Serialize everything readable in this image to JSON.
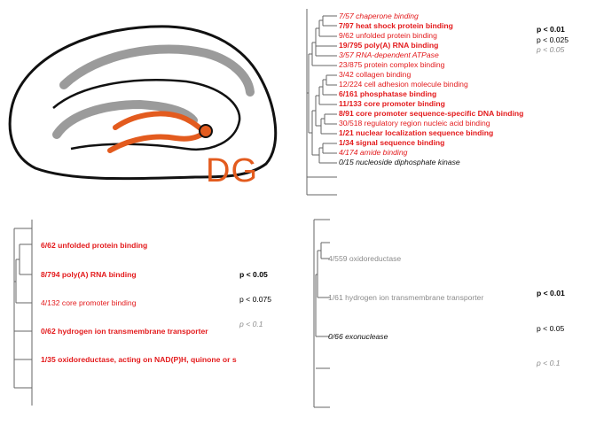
{
  "colors": {
    "red": "#e31a1c",
    "black": "#111111",
    "gray": "#8c8c8c",
    "orange": "#e35b1e"
  },
  "brain_label": "DG",
  "panel_tr": {
    "terms": [
      {
        "text": "7/57 chaperone binding",
        "style": "redi"
      },
      {
        "text": "7/97 heat shock protein binding",
        "style": "redb"
      },
      {
        "text": "9/62 unfolded protein binding",
        "style": "red"
      },
      {
        "text": "19/795 poly(A) RNA binding",
        "style": "redb"
      },
      {
        "text": "3/57 RNA-dependent ATPase",
        "style": "redi"
      },
      {
        "text": "23/875 protein complex binding",
        "style": "red"
      },
      {
        "text": "3/42 collagen binding",
        "style": "red"
      },
      {
        "text": "12/224 cell adhesion molecule binding",
        "style": "red"
      },
      {
        "text": "6/161 phosphatase binding",
        "style": "redb"
      },
      {
        "text": "11/133 core promoter binding",
        "style": "redb"
      },
      {
        "text": "8/91 core promoter sequence-specific DNA binding",
        "style": "redb"
      },
      {
        "text": "30/518 regulatory region nucleic acid binding",
        "style": "red"
      },
      {
        "text": "1/21 nuclear localization sequence binding",
        "style": "redb"
      },
      {
        "text": "1/34 signal sequence binding",
        "style": "redb"
      },
      {
        "text": "4/174 amide binding",
        "style": "redi"
      },
      {
        "text": "0/15 nucleoside diphosphate kinase",
        "style": "blki"
      }
    ],
    "legend": [
      "p < 0.01",
      "p < 0.025",
      "p < 0.05"
    ]
  },
  "panel_bl": {
    "terms": [
      {
        "text": "6/62 unfolded protein binding",
        "style": "redb"
      },
      {
        "text": "8/794 poly(A) RNA binding",
        "style": "redb"
      },
      {
        "text": "4/132 core promoter binding",
        "style": "red"
      },
      {
        "text": "0/62 hydrogen ion transmembrane transporter",
        "style": "redb"
      },
      {
        "text": "1/35 oxidoreductase, acting on NAD(P)H, quinone or s",
        "style": "redb"
      }
    ],
    "legend": [
      "p < 0.05",
      "p < 0.075",
      "p < 0.1"
    ]
  },
  "panel_br": {
    "terms": [
      {
        "text": "4/559 oxidoreductase",
        "style": "gry"
      },
      {
        "text": "1/61 hydrogen ion transmembrane transporter",
        "style": "gry"
      },
      {
        "text": "0/66 exonuclease",
        "style": "blki"
      }
    ],
    "legend": [
      "p < 0.01",
      "p < 0.05",
      "p < 0.1"
    ]
  }
}
